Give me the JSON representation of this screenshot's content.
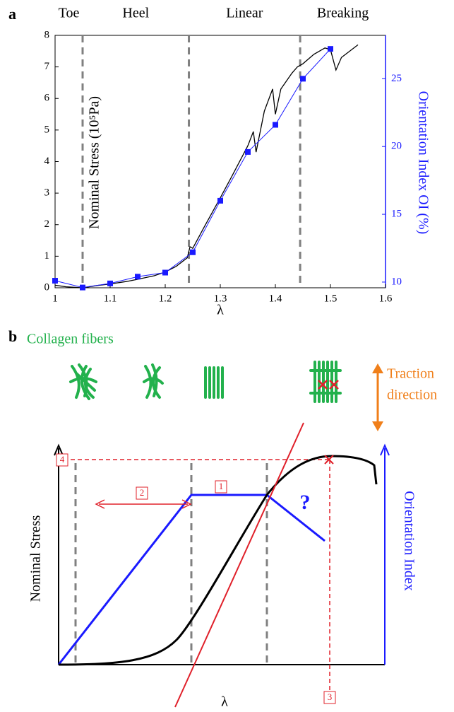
{
  "chart_data": {
    "type": "line",
    "panel_label": "a",
    "phase_labels": [
      "Toe",
      "Heel",
      "Linear",
      "Breaking"
    ],
    "phase_boundaries": [
      1.05,
      1.243,
      1.445
    ],
    "x_label": "λ",
    "y_label": "Nominal Stress (10⁵Pa)",
    "y2_label": "Orientation Index OI (%)",
    "xlim": [
      1,
      1.6
    ],
    "xticks": [
      1,
      1.1,
      1.2,
      1.3,
      1.4,
      1.5,
      1.6
    ],
    "ylim": [
      0,
      8
    ],
    "yticks": [
      0,
      1,
      2,
      3,
      4,
      5,
      6,
      7,
      8
    ],
    "y2lim": [
      9.58,
      28.2
    ],
    "y2ticks": [
      10,
      15,
      20,
      25
    ],
    "series": [
      {
        "color": "#000000",
        "x": [
          1,
          1.02,
          1.05,
          1.08,
          1.1,
          1.13,
          1.15,
          1.18,
          1.2,
          1.22,
          1.24,
          1.245,
          1.25,
          1.27,
          1.3,
          1.32,
          1.35,
          1.36,
          1.365,
          1.38,
          1.395,
          1.4,
          1.41,
          1.43,
          1.44,
          1.45,
          1.47,
          1.49,
          1.5,
          1.51,
          1.52,
          1.55
        ],
        "values": [
          0.08,
          0.03,
          0.0,
          0.08,
          0.12,
          0.2,
          0.27,
          0.38,
          0.5,
          0.68,
          0.95,
          1.3,
          1.25,
          1.9,
          2.85,
          3.5,
          4.5,
          4.95,
          4.3,
          5.6,
          6.3,
          5.5,
          6.3,
          6.8,
          7.0,
          7.1,
          7.4,
          7.6,
          7.55,
          6.9,
          7.3,
          7.7
        ]
      },
      {
        "color": "#1a1aff",
        "axis": "y2",
        "marker": "square",
        "x": [
          1.0,
          1.05,
          1.1,
          1.15,
          1.2,
          1.25,
          1.3,
          1.35,
          1.4,
          1.45,
          1.5
        ],
        "values": [
          10.1,
          9.6,
          9.9,
          10.4,
          10.7,
          12.2,
          16.0,
          19.6,
          21.6,
          25.0,
          27.2
        ]
      }
    ]
  },
  "diagram": {
    "panel_label": "b",
    "fiber_title": "Collagen fibers",
    "traction": [
      "Traction",
      "direction"
    ],
    "y_label": "Nominal Stress",
    "y2_label": "Orientation Index",
    "x_label": "λ",
    "question": "?",
    "markers": [
      "1",
      "2",
      "3",
      "4"
    ]
  }
}
